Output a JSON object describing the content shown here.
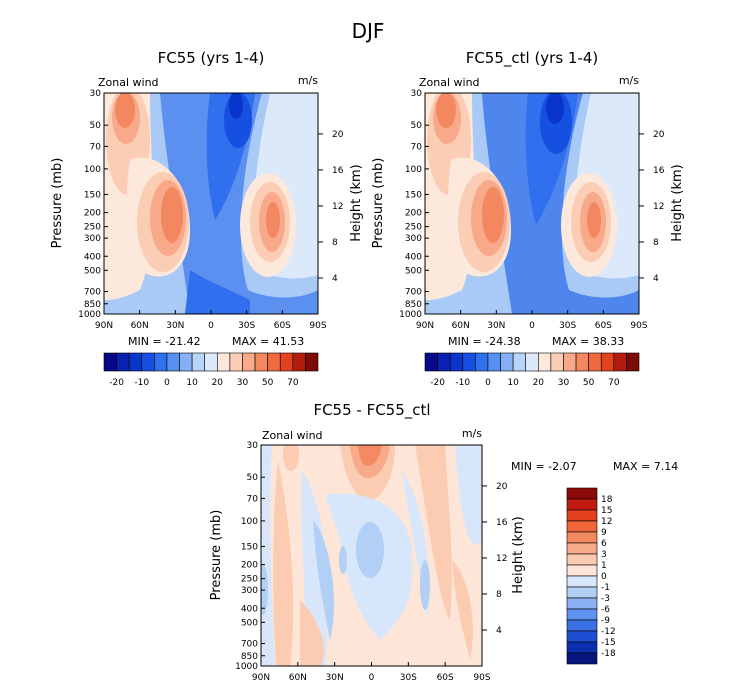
{
  "chart_data": [
    {
      "type": "heatmap",
      "main_title": "DJF",
      "title": "FC55 (yrs 1-4)",
      "left_label": "Zonal wind",
      "right_label": "m/s",
      "ylabel": "Pressure (mb)",
      "ylabel_right": "Height (km)",
      "x_ticks": [
        "90N",
        "60N",
        "30N",
        "0",
        "30S",
        "60S",
        "90S"
      ],
      "y_ticks": [
        "30",
        "50",
        "70",
        "100",
        "150",
        "200",
        "250",
        "300",
        "400",
        "500",
        "700",
        "850",
        "1000"
      ],
      "y_right_ticks": [
        "20",
        "16",
        "12",
        "8",
        "4"
      ],
      "min_text": "MIN = -21.42",
      "max_text": "MAX = 41.53",
      "colorbar": {
        "orientation": "horizontal",
        "labels": [
          "-20",
          "-10",
          "0",
          "10",
          "20",
          "30",
          "50",
          "70"
        ],
        "colors": [
          "#08088a",
          "#0a20b0",
          "#0a35cc",
          "#1550e0",
          "#3070ee",
          "#5590f2",
          "#85b0f5",
          "#b8d4f8",
          "#dce9fb",
          "#fde8dc",
          "#fbcdb4",
          "#f7a98a",
          "#f38860",
          "#ef6a3c",
          "#e2431e",
          "#b51c10",
          "#7e0a06"
        ]
      }
    },
    {
      "type": "heatmap",
      "title": "FC55_ctl (yrs 1-4)",
      "left_label": "Zonal wind",
      "right_label": "m/s",
      "ylabel": "Pressure (mb)",
      "ylabel_right": "Height (km)",
      "x_ticks": [
        "90N",
        "60N",
        "30N",
        "0",
        "30S",
        "60S",
        "90S"
      ],
      "y_ticks": [
        "30",
        "50",
        "70",
        "100",
        "150",
        "200",
        "250",
        "300",
        "400",
        "500",
        "700",
        "850",
        "1000"
      ],
      "y_right_ticks": [
        "20",
        "16",
        "12",
        "8",
        "4"
      ],
      "min_text": "MIN = -24.38",
      "max_text": "MAX = 38.33",
      "colorbar": {
        "orientation": "horizontal",
        "labels": [
          "-20",
          "-10",
          "0",
          "10",
          "20",
          "30",
          "50",
          "70"
        ]
      }
    },
    {
      "type": "heatmap",
      "title": "FC55 - FC55_ctl",
      "left_label": "Zonal wind",
      "right_label": "m/s",
      "ylabel": "Pressure (mb)",
      "ylabel_right": "Height (km)",
      "x_ticks": [
        "90N",
        "60N",
        "30N",
        "0",
        "30S",
        "60S",
        "90S"
      ],
      "y_ticks": [
        "30",
        "50",
        "70",
        "100",
        "150",
        "200",
        "250",
        "300",
        "400",
        "500",
        "700",
        "850",
        "1000"
      ],
      "y_right_ticks": [
        "20",
        "16",
        "12",
        "8",
        "4"
      ],
      "min_text": "MIN = -2.07",
      "max_text": "MAX = 7.14",
      "colorbar": {
        "orientation": "vertical",
        "labels": [
          "18",
          "15",
          "12",
          "9",
          "6",
          "3",
          "1",
          "0",
          "-1",
          "-3",
          "-6",
          "-9",
          "-12",
          "-15",
          "-18"
        ],
        "colors": [
          "#8c0a06",
          "#c01a12",
          "#e2401e",
          "#ef6538",
          "#f48a62",
          "#f7ab8b",
          "#fbcbb2",
          "#fde6d8",
          "#d7e6fa",
          "#b2cff6",
          "#8ab2f3",
          "#5f92ee",
          "#3a70e4",
          "#1e4fd2",
          "#0c2fae",
          "#07157e"
        ]
      }
    }
  ]
}
